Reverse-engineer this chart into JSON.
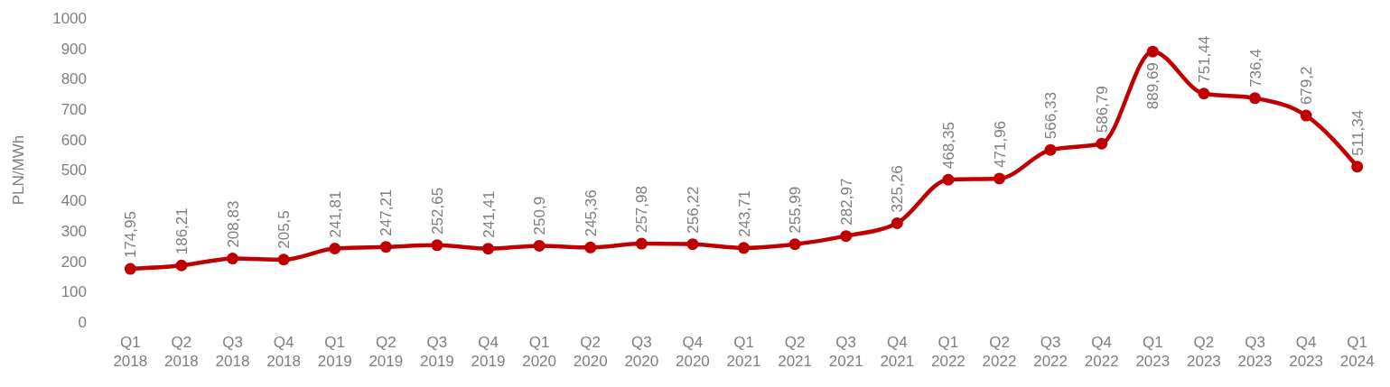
{
  "chart_data": {
    "type": "line",
    "ylabel": "PLN/MWh",
    "categories": [
      "Q1 2018",
      "Q2 2018",
      "Q3 2018",
      "Q4 2018",
      "Q1 2019",
      "Q2 2019",
      "Q3 2019",
      "Q4 2019",
      "Q1 2020",
      "Q2 2020",
      "Q3 2020",
      "Q4 2020",
      "Q1 2021",
      "Q2 2021",
      "Q3 2021",
      "Q4 2021",
      "Q1 2022",
      "Q2 2022",
      "Q3 2022",
      "Q4 2022",
      "Q1 2023",
      "Q2 2023",
      "Q3 2023",
      "Q4 2023",
      "Q1 2024"
    ],
    "series": [
      {
        "color": "#c00000",
        "values": [
          174.95,
          186.21,
          208.83,
          205.5,
          241.81,
          247.21,
          252.65,
          241.41,
          250.9,
          245.36,
          257.98,
          256.22,
          243.71,
          255.99,
          282.97,
          325.26,
          468.35,
          471.96,
          566.33,
          586.79,
          889.69,
          751.44,
          736.4,
          679.2,
          511.34
        ],
        "value_labels": [
          "174,95",
          "186,21",
          "208,83",
          "205,5",
          "241,81",
          "247,21",
          "252,65",
          "241,41",
          "250,9",
          "245,36",
          "257,98",
          "256,22",
          "243,71",
          "255,99",
          "282,97",
          "325,26",
          "468,35",
          "471,96",
          "566,33",
          "586,79",
          "889,69",
          "751,44",
          "736,4",
          "679,2",
          "511,34"
        ]
      }
    ],
    "ylim": [
      0,
      1000
    ],
    "yticks": [
      0,
      100,
      200,
      300,
      400,
      500,
      600,
      700,
      800,
      900,
      1000
    ],
    "grid": false,
    "marker": "circle",
    "line_style": "solid"
  }
}
